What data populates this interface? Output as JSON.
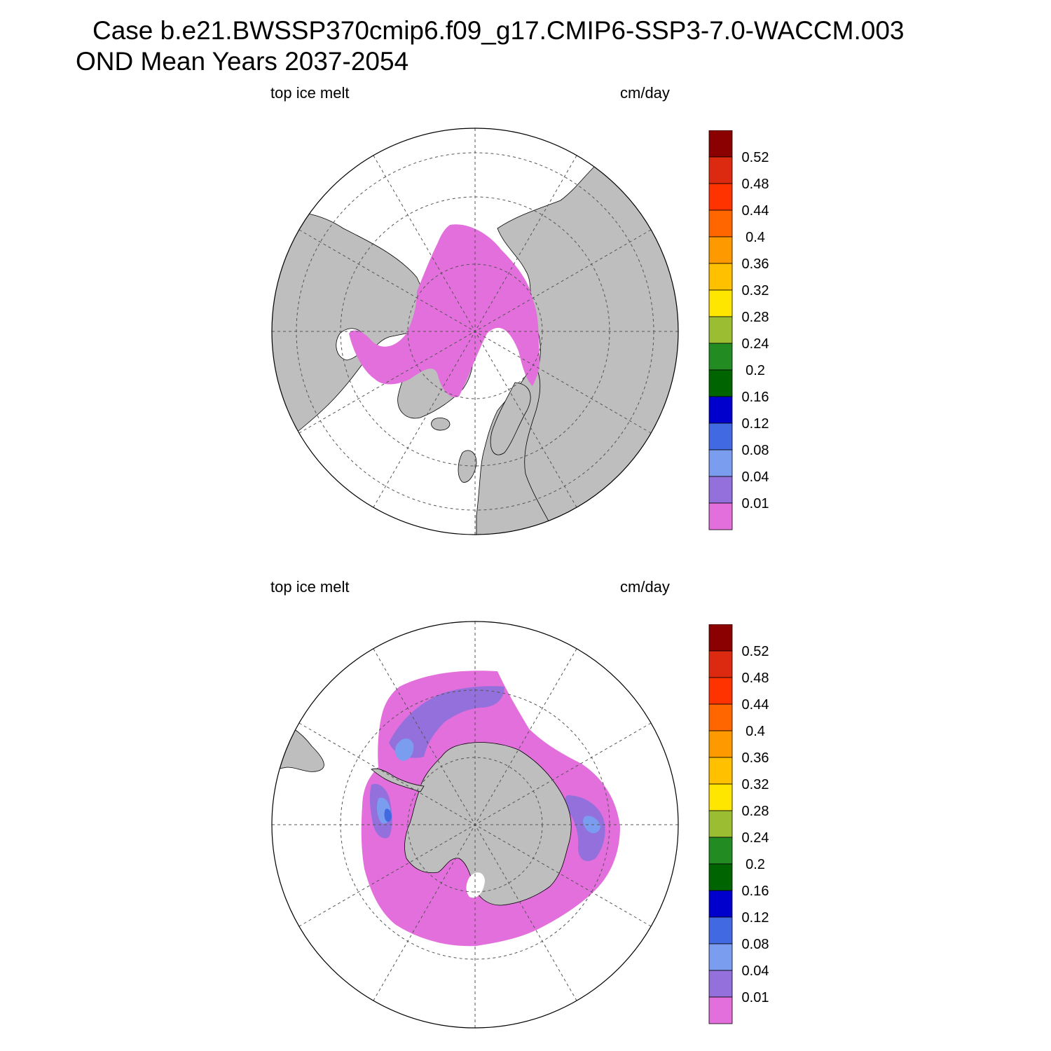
{
  "title": {
    "line1": "Case b.e21.BWSSP370cmip6.f09_g17.CMIP6-SSP3-7.0-WACCM.003",
    "line2": "OND Mean   Years 2037-2054"
  },
  "panels": [
    {
      "name": "north",
      "hemisphere": "Northern Hemisphere polar stereographic",
      "left_label": "top ice melt",
      "right_label": "cm/day"
    },
    {
      "name": "south",
      "hemisphere": "Southern Hemisphere polar stereographic",
      "left_label": "top ice melt",
      "right_label": "cm/day"
    }
  ],
  "colorbar": {
    "labels": [
      "0.52",
      "0.48",
      "0.44",
      "0.4",
      "0.36",
      "0.32",
      "0.28",
      "0.24",
      "0.2",
      "0.16",
      "0.12",
      "0.08",
      "0.04",
      "0.01"
    ],
    "colors": [
      "#8b0000",
      "#dc2a10",
      "#ff3300",
      "#ff6600",
      "#ff9900",
      "#ffc000",
      "#ffe600",
      "#9abd32",
      "#228b22",
      "#006400",
      "#0000cd",
      "#4169e1",
      "#7b9df0",
      "#9370db",
      "#e36fdc"
    ]
  },
  "colors": {
    "land": "#bebebe",
    "ocean": "#ffffff",
    "melt_lowest": "#e36fdc",
    "melt_level2": "#9370db",
    "melt_level3": "#7b9df0",
    "melt_level4": "#4169e1"
  }
}
